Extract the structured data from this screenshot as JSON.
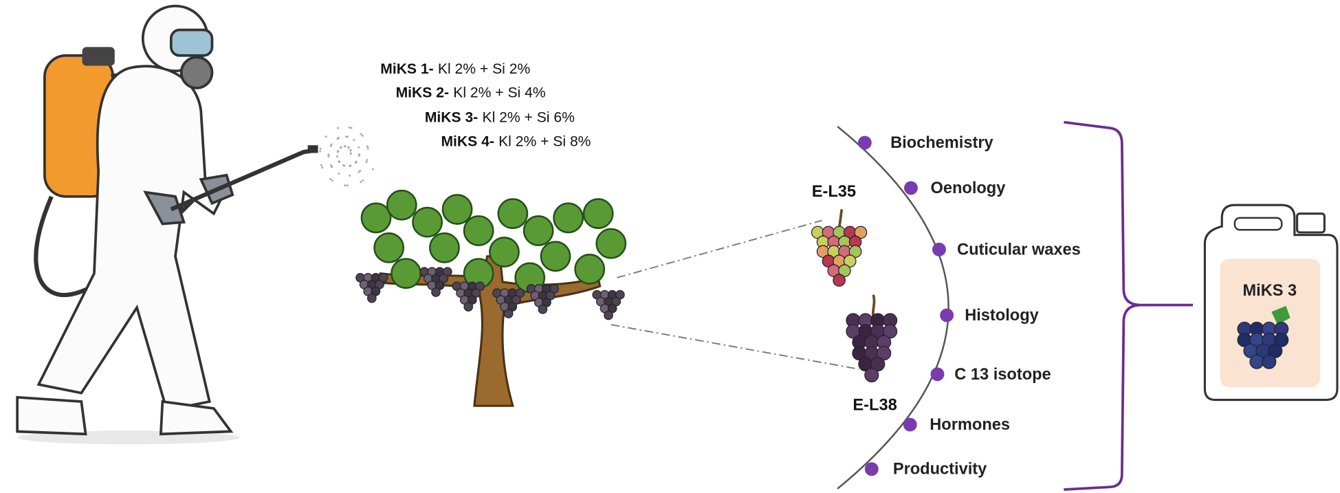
{
  "treatments": [
    {
      "name": "MiKS 1-",
      "formula": "Kl 2% + Si 2%"
    },
    {
      "name": "MiKS 2-",
      "formula": "Kl 2% + Si 4%"
    },
    {
      "name": "MiKS 3-",
      "formula": "Kl 2% + Si 6%"
    },
    {
      "name": "MiKS 4-",
      "formula": "Kl 2% + Si 8%"
    }
  ],
  "stages": [
    "E-L35",
    "E-L38"
  ],
  "analyses": [
    "Biochemistry",
    "Oenology",
    "Cuticular waxes",
    "Histology",
    "C 13 isotope",
    "Hormones",
    "Productivity"
  ],
  "product": {
    "label": "MiKS 3"
  }
}
